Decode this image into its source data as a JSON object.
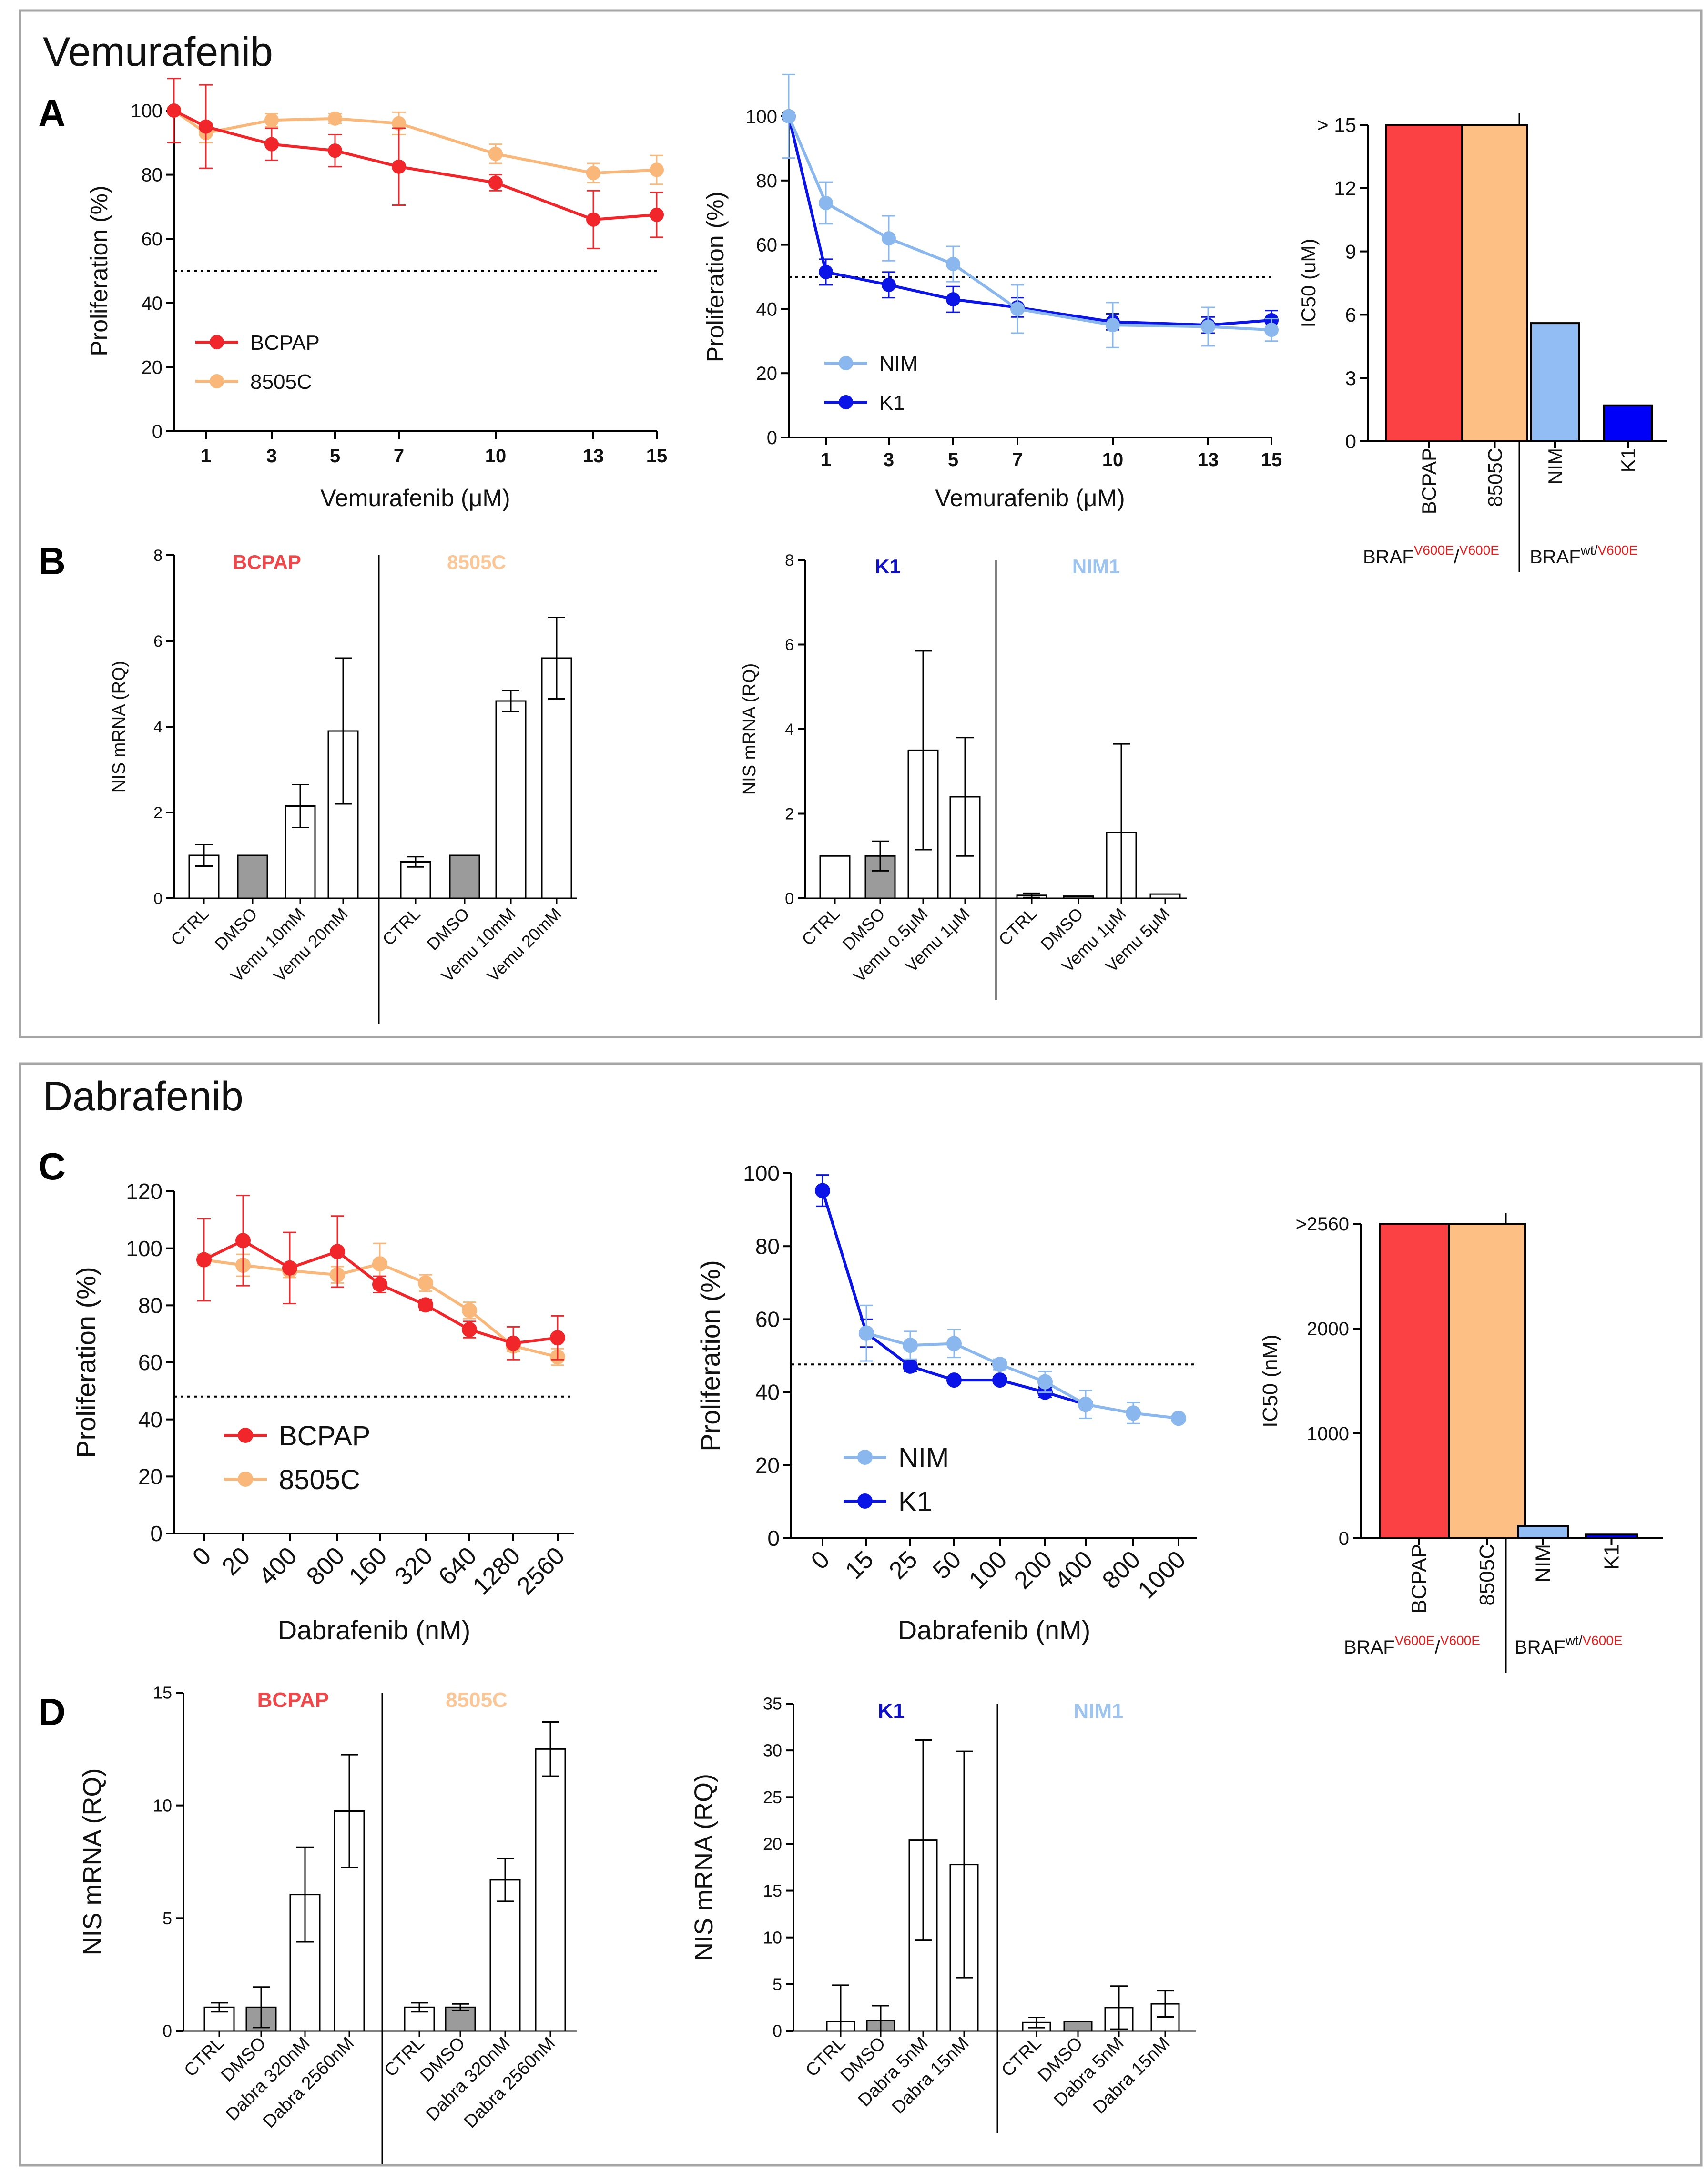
{
  "colors": {
    "bcpap": "#f0262a",
    "c8505": "#fab77a",
    "nim": "#8ab8ee",
    "k1": "#0a14e6",
    "bcpap_bar": "#fb4143",
    "c8505_bar": "#fdbf84",
    "nim_bar": "#92bdf4",
    "k1_bar": "#0000f8",
    "bcpap_label": "#f0484a",
    "c8505_label": "#fcc797",
    "k1_label": "#1010c8",
    "nim1_label": "#9cc4ee",
    "mut_red": "#e81c1c",
    "dmso_gray": "#9b9b9b",
    "frame": "#a6a6a6"
  },
  "sections": [
    {
      "title": "Vemurafenib"
    },
    {
      "title": "Dabrafenib"
    }
  ],
  "panel_letters": [
    "A",
    "B",
    "C",
    "D"
  ],
  "braf": {
    "prefix": "BRAF",
    "mut_sup": "V600E",
    "slash": "/",
    "wt_sup": "wt"
  },
  "chart_data": [
    {
      "id": "A1",
      "type": "line",
      "xlabel": "Vemurafenib (μM)",
      "ylabel": "Proliferation (%)",
      "x": [
        0,
        1,
        3,
        5,
        7,
        10,
        13,
        15
      ],
      "xticks": [
        "1",
        "3",
        "5",
        "7",
        "10",
        "13",
        "15"
      ],
      "ylim": [
        0,
        100
      ],
      "yticks": [
        "0",
        "20",
        "40",
        "60",
        "80",
        "100"
      ],
      "reference_line": 50,
      "series": [
        {
          "name": "BCPAP",
          "color": "#f0262a",
          "values": [
            100,
            95,
            89.5,
            87.5,
            82.5,
            77.5,
            66,
            67.5
          ],
          "err": [
            10,
            13,
            5,
            5,
            12,
            2.5,
            9,
            7
          ]
        },
        {
          "name": "8505C",
          "color": "#fab77a",
          "values": [
            100,
            93,
            97,
            97.5,
            96,
            86.5,
            80.5,
            81.5
          ],
          "err": [
            1,
            3,
            2,
            1.5,
            3.5,
            3,
            3,
            4.5
          ]
        }
      ]
    },
    {
      "id": "A2",
      "type": "line",
      "xlabel": "Vemurafenib (μM)",
      "ylabel": "Proliferation (%)",
      "x": [
        0,
        1,
        3,
        5,
        7,
        10,
        13,
        15
      ],
      "xticks": [
        "1",
        "3",
        "5",
        "7",
        "10",
        "13",
        "15"
      ],
      "ylim": [
        0,
        100
      ],
      "yticks": [
        "0",
        "20",
        "40",
        "60",
        "80",
        "100"
      ],
      "reference_line": 50,
      "series": [
        {
          "name": "NIM",
          "color": "#8ab8ee",
          "values": [
            100,
            73,
            62,
            54,
            40,
            35,
            34.5,
            33.5
          ],
          "err": [
            13,
            6.5,
            7,
            5.5,
            7.5,
            7,
            6,
            3.5
          ]
        },
        {
          "name": "K1",
          "color": "#0a14e6",
          "values": [
            100,
            51.5,
            47.5,
            43,
            40.5,
            36,
            35,
            36.5
          ],
          "err": [
            1,
            4,
            4,
            4,
            3,
            2.5,
            2.5,
            3
          ]
        }
      ]
    },
    {
      "id": "A3",
      "type": "bar",
      "ylabel": "IC50 (uM)",
      "categories": [
        "BCPAP",
        "8505C",
        "NIM",
        "K1"
      ],
      "values": [
        15,
        15,
        5.6,
        1.7
      ],
      "colors": [
        "#fb4143",
        "#fdbf84",
        "#92bdf4",
        "#0000f8"
      ],
      "ylim": [
        0,
        15
      ],
      "yticks": [
        "0",
        "3",
        "6",
        "9",
        "12",
        "> 15"
      ]
    },
    {
      "id": "B1",
      "type": "bar",
      "ylabel": "NIS mRNA (RQ)",
      "groups": [
        {
          "name": "BCPAP",
          "categories": [
            "CTRL",
            "DMSO",
            "Vemu 10mM",
            "Vemu 20mM"
          ],
          "values": [
            1,
            1,
            2.15,
            3.9
          ],
          "err": [
            0.25,
            0,
            0.5,
            1.7
          ]
        },
        {
          "name": "8505C",
          "categories": [
            "CTRL",
            "DMSO",
            "Vemu 10mM",
            "Vemu 20mM"
          ],
          "values": [
            0.85,
            1,
            4.6,
            5.6
          ],
          "err": [
            0.12,
            0,
            0.25,
            0.95
          ]
        }
      ],
      "ylim": [
        0,
        8
      ],
      "yticks": [
        "0",
        "2",
        "4",
        "6",
        "8"
      ]
    },
    {
      "id": "B2",
      "type": "bar",
      "ylabel": "NIS mRNA (RQ)",
      "groups": [
        {
          "name": "K1",
          "categories": [
            "CTRL",
            "DMSO",
            "Vemu 0.5μM",
            "Vemu 1μM"
          ],
          "values": [
            1,
            1,
            3.5,
            2.4
          ],
          "err": [
            0,
            0.35,
            2.35,
            1.4
          ]
        },
        {
          "name": "NIM1",
          "categories": [
            "CTRL",
            "DMSO",
            "Vemu 1μM",
            "Vemu 5μM"
          ],
          "values": [
            0.07,
            0.05,
            1.55,
            0.1
          ],
          "err": [
            0.05,
            0,
            2.1,
            0
          ]
        }
      ],
      "ylim": [
        0,
        8
      ],
      "yticks": [
        "0",
        "2",
        "4",
        "6",
        "8"
      ]
    },
    {
      "id": "C1",
      "type": "line",
      "xlabel": "Dabrafenib (nM)",
      "ylabel": "Proliferation (%)",
      "xticks": [
        "0",
        "20",
        "400",
        "800",
        "160",
        "320",
        "640",
        "1280",
        "2560"
      ],
      "ylim": [
        0,
        125
      ],
      "yticks": [
        "0",
        "20",
        "40",
        "60",
        "80",
        "100",
        "120"
      ],
      "reference_line": 50,
      "series": [
        {
          "name": "BCPAP",
          "color": "#f0262a",
          "values": [
            100,
            107,
            97,
            103,
            91,
            83.5,
            74.5,
            69.5,
            71.5
          ],
          "err": [
            15,
            16.5,
            13,
            13,
            3,
            2,
            3,
            6,
            8
          ]
        },
        {
          "name": "8505C",
          "color": "#fab77a",
          "values": [
            100,
            98,
            96,
            94.5,
            98.5,
            91.5,
            81.5,
            68.5,
            64.5
          ],
          "err": [
            2,
            4,
            2.5,
            3,
            7.5,
            3,
            3,
            2,
            3
          ]
        }
      ]
    },
    {
      "id": "C2",
      "type": "line",
      "xlabel": "Dabrafenib (nM)",
      "ylabel": "Proliferation (%)",
      "xticks": [
        "0",
        "15",
        "25",
        "50",
        "100",
        "200",
        "400",
        "800",
        "1000"
      ],
      "ylim": [
        0,
        105
      ],
      "yticks": [
        "0",
        "20",
        "40",
        "60",
        "80",
        "100"
      ],
      "reference_line": 50,
      "series": [
        {
          "name": "NIM",
          "color": "#8ab8ee",
          "values": [
            null,
            59,
            55.5,
            56,
            50,
            45,
            38.5,
            36,
            34.5
          ],
          "err": [
            0,
            8,
            4,
            4,
            1.5,
            3,
            4,
            3,
            1
          ]
        },
        {
          "name": "K1",
          "color": "#0a14e6",
          "values": [
            100,
            59,
            49.5,
            45.5,
            45.5,
            42,
            38.5,
            null,
            null
          ],
          "err": [
            4.5,
            4,
            1.5,
            1,
            1,
            1.5,
            1,
            0,
            0
          ]
        }
      ]
    },
    {
      "id": "C3",
      "type": "bar",
      "ylabel": "IC50 (nM)",
      "categories": [
        "BCPAP",
        "8505C",
        "NIM",
        "K1"
      ],
      "values": [
        2560,
        2560,
        100,
        30
      ],
      "colors": [
        "#fb4143",
        "#fdbf84",
        "#92bdf4",
        "#0000f8"
      ],
      "ylim": [
        0,
        2560
      ],
      "yticks": [
        "0",
        "1000",
        "2000",
        ">2560"
      ]
    },
    {
      "id": "D1",
      "type": "bar",
      "ylabel": "NIS mRNA (RQ)",
      "groups": [
        {
          "name": "BCPAP",
          "categories": [
            "CTRL",
            "DMSO",
            "Dabra 320nM",
            "Dabra 2560nM"
          ],
          "values": [
            1.05,
            1.05,
            6.05,
            9.75
          ],
          "err": [
            0.2,
            0.9,
            2.1,
            2.5
          ]
        },
        {
          "name": "8505C",
          "categories": [
            "CTRL",
            "DMSO",
            "Dabra 320nM",
            "Dabra 2560nM"
          ],
          "values": [
            1.05,
            1.05,
            6.7,
            12.5
          ],
          "err": [
            0.2,
            0.15,
            0.95,
            1.2
          ]
        }
      ],
      "ylim": [
        0,
        15
      ],
      "yticks": [
        "0",
        "5",
        "10",
        "15"
      ]
    },
    {
      "id": "D2",
      "type": "bar",
      "ylabel": "NIS mRNA (RQ)",
      "groups": [
        {
          "name": "K1",
          "categories": [
            "CTRL",
            "DMSO",
            "Dabra 5nM",
            "Dabra 15nM"
          ],
          "values": [
            1,
            1.1,
            20.4,
            17.8
          ],
          "err": [
            3.9,
            1.6,
            10.7,
            12.1
          ]
        },
        {
          "name": "NIM1",
          "categories": [
            "CTRL",
            "DMSO",
            "Dabra 5nM",
            "Dabra 15nM"
          ],
          "values": [
            0.9,
            1.0,
            2.5,
            2.9
          ],
          "err": [
            0.55,
            0,
            2.3,
            1.4
          ]
        }
      ],
      "ylim": [
        0,
        35
      ],
      "yticks": [
        "0",
        "5",
        "10",
        "15",
        "20",
        "25",
        "30",
        "35"
      ]
    }
  ]
}
